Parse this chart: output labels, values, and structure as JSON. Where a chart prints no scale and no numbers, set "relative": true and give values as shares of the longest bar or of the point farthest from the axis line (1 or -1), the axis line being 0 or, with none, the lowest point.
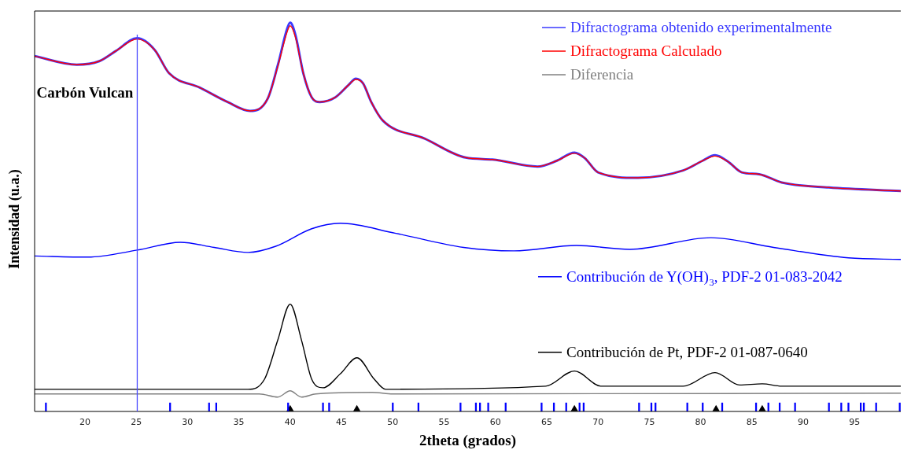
{
  "chart_data": {
    "type": "line",
    "xlabel": "2theta (grados)",
    "ylabel": "Intensidad (u.a.)",
    "relative": true,
    "legend": "top right",
    "grid": false,
    "marker": "none",
    "line_style": "solid",
    "xlim": [
      15.1,
      99.5
    ],
    "xticks": [
      20,
      25,
      30,
      35,
      40,
      45,
      50,
      55,
      60,
      65,
      70,
      75,
      80,
      85,
      90,
      95
    ],
    "ref_lines": [
      {
        "axis": "x",
        "value": 25.1,
        "label": "Carbón Vulcan",
        "color": "#4a4aff"
      }
    ],
    "series": [
      {
        "name": "Difractograma obtenido experimentalmente",
        "color": "#3a3aff",
        "x": [
          15.1,
          19.2,
          21.4,
          23.0,
          25.1,
          26.8,
          28.2,
          31.2,
          33.9,
          36.1,
          37.8,
          38.8,
          39.7,
          40.0,
          40.5,
          41.3,
          42.1,
          42.9,
          44.4,
          45.7,
          46.4,
          47.1,
          47.9,
          49.0,
          53.1,
          57.1,
          59.7,
          64.1,
          66.0,
          67.7,
          68.7,
          70.0,
          73.9,
          78.3,
          80.2,
          81.4,
          82.7,
          84.0,
          85.7,
          87.9,
          92.5,
          99.5
        ],
        "values": [
          0.914,
          0.892,
          0.901,
          0.927,
          0.96,
          0.93,
          0.87,
          0.833,
          0.796,
          0.773,
          0.804,
          0.891,
          0.984,
          1.0,
          0.97,
          0.868,
          0.808,
          0.796,
          0.808,
          0.84,
          0.856,
          0.844,
          0.796,
          0.749,
          0.702,
          0.653,
          0.648,
          0.63,
          0.645,
          0.666,
          0.652,
          0.615,
          0.601,
          0.62,
          0.645,
          0.659,
          0.642,
          0.615,
          0.61,
          0.589,
          0.576,
          0.567
        ]
      },
      {
        "name": "Difractograma Calculado",
        "color": "#ff0000",
        "x": [
          15.1,
          19.2,
          21.4,
          23.0,
          25.1,
          26.8,
          28.2,
          31.2,
          33.9,
          36.1,
          37.8,
          38.8,
          39.7,
          40.0,
          40.5,
          41.3,
          42.1,
          42.9,
          44.4,
          45.7,
          46.4,
          47.1,
          47.9,
          49.0,
          53.1,
          57.1,
          59.7,
          64.1,
          66.0,
          67.7,
          68.7,
          70.0,
          73.9,
          78.3,
          80.2,
          81.4,
          82.7,
          84.0,
          85.7,
          87.9,
          92.5,
          99.5
        ],
        "values": [
          0.914,
          0.892,
          0.901,
          0.927,
          0.958,
          0.93,
          0.87,
          0.833,
          0.796,
          0.773,
          0.804,
          0.888,
          0.976,
          0.992,
          0.964,
          0.868,
          0.808,
          0.796,
          0.808,
          0.84,
          0.854,
          0.844,
          0.796,
          0.749,
          0.702,
          0.653,
          0.648,
          0.63,
          0.645,
          0.664,
          0.652,
          0.615,
          0.601,
          0.62,
          0.645,
          0.657,
          0.642,
          0.615,
          0.61,
          0.589,
          0.576,
          0.567
        ]
      },
      {
        "name": "Diferencia",
        "color": "#808080",
        "x": [
          15.1,
          37.0,
          38.8,
          40.0,
          41.1,
          42.5,
          48.0,
          50.0,
          99.5
        ],
        "values": [
          0.045,
          0.045,
          0.037,
          0.053,
          0.037,
          0.045,
          0.049,
          0.045,
          0.047
        ]
      },
      {
        "name": "Contribución de Y(OH)$_{3}$, PDF-2 01-083-2042",
        "color": "#0000ff",
        "x": [
          15.1,
          20.3,
          25.1,
          29.3,
          32.6,
          35.9,
          38.6,
          42.1,
          44.9,
          50.3,
          56.9,
          61.8,
          67.9,
          73.1,
          81.0,
          87.1,
          94.4,
          99.5
        ],
        "values": [
          0.4,
          0.397,
          0.415,
          0.435,
          0.422,
          0.409,
          0.425,
          0.47,
          0.484,
          0.458,
          0.422,
          0.413,
          0.427,
          0.417,
          0.447,
          0.422,
          0.395,
          0.391
        ]
      },
      {
        "name": "Contribución de Pt, PDF-2 01-087-0640",
        "color": "#000000",
        "x": [
          15.1,
          35.9,
          37.5,
          38.8,
          40.0,
          41.1,
          42.1,
          43.2,
          44.9,
          46.5,
          48.2,
          49.3,
          64.9,
          67.7,
          70.3,
          78.3,
          81.4,
          83.8,
          86.0,
          87.9,
          99.5
        ],
        "values": [
          0.057,
          0.057,
          0.083,
          0.184,
          0.276,
          0.184,
          0.083,
          0.061,
          0.097,
          0.138,
          0.083,
          0.057,
          0.065,
          0.104,
          0.065,
          0.065,
          0.1,
          0.068,
          0.071,
          0.065,
          0.065
        ]
      },
      {
        "type": "bar",
        "color": "#0000ff",
        "x": [
          16.2,
          28.3,
          32.1,
          32.8,
          39.8,
          43.2,
          43.8,
          50.0,
          52.5,
          56.6,
          58.1,
          58.5,
          59.3,
          61.0,
          64.5,
          65.7,
          66.9,
          68.2,
          68.6,
          74.0,
          75.2,
          75.6,
          78.7,
          80.2,
          82.1,
          85.4,
          86.6,
          87.7,
          89.2,
          92.5,
          93.7,
          94.4,
          95.6,
          95.9,
          97.1,
          99.4
        ],
        "values": [
          0.022,
          0.022,
          0.022,
          0.022,
          0.022,
          0.022,
          0.022,
          0.022,
          0.022,
          0.022,
          0.022,
          0.022,
          0.022,
          0.022,
          0.022,
          0.022,
          0.022,
          0.022,
          0.022,
          0.022,
          0.022,
          0.022,
          0.022,
          0.022,
          0.022,
          0.022,
          0.022,
          0.022,
          0.022,
          0.022,
          0.022,
          0.022,
          0.022,
          0.022,
          0.022,
          0.022
        ]
      },
      {
        "type": "scatter",
        "color": "#000000",
        "marker": "triangle",
        "x": [
          40.0,
          46.5,
          67.7,
          81.5,
          86.0
        ],
        "values": [
          0.006,
          0.006,
          0.006,
          0.006,
          0.006
        ]
      }
    ]
  }
}
